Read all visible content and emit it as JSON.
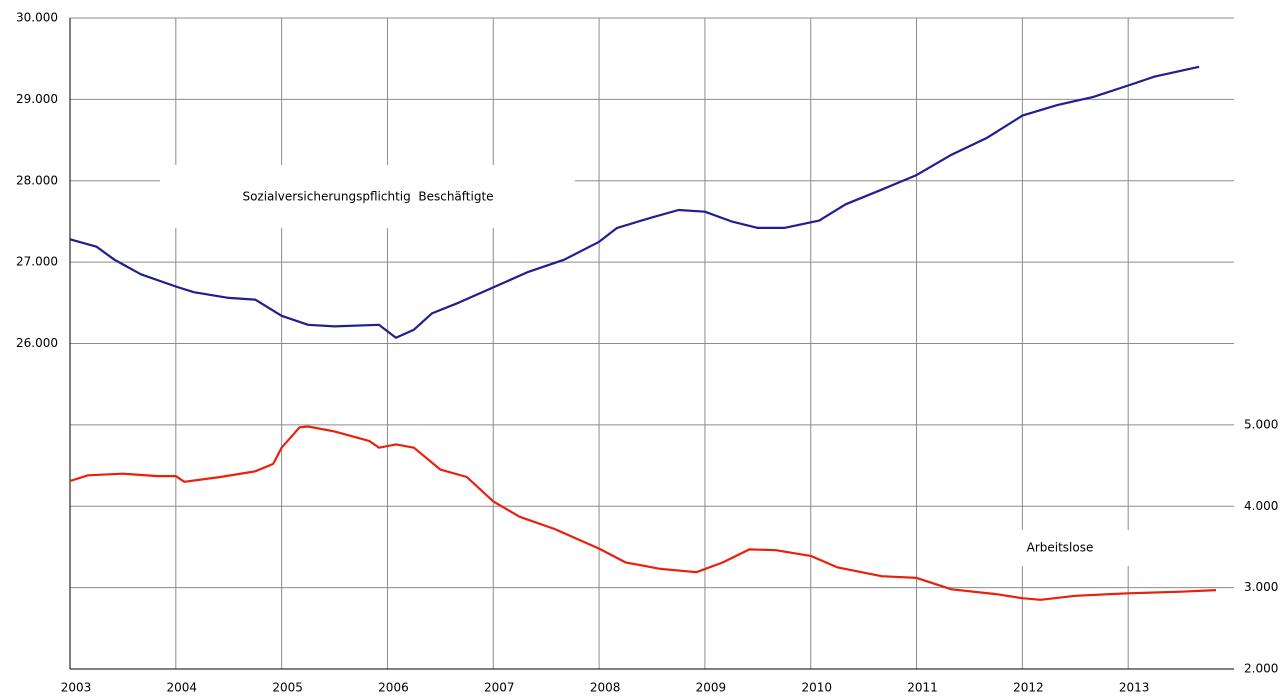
{
  "chart_data": {
    "type": "line",
    "xlim": [
      2003,
      2014
    ],
    "xticks": [
      2003,
      2004,
      2005,
      2006,
      2007,
      2008,
      2009,
      2010,
      2011,
      2012,
      2013
    ],
    "ylim": [
      22000,
      30000
    ],
    "yticks": [
      {
        "value": 26000,
        "label": "26.000"
      },
      {
        "value": 27000,
        "label": "27.000"
      },
      {
        "value": 28000,
        "label": "28.000"
      },
      {
        "value": 29000,
        "label": "29.000"
      },
      {
        "value": 30000,
        "label": "30.000"
      }
    ],
    "y2lim": [
      2000,
      10000
    ],
    "y2ticks": [
      {
        "value": 2000,
        "label": "2.000"
      },
      {
        "value": 3000,
        "label": "3.000"
      },
      {
        "value": 4000,
        "label": "4.000"
      },
      {
        "value": 5000,
        "label": "5.000"
      }
    ],
    "grid": true,
    "series": [
      {
        "name": "Sozialversicherungspflichtig  Beschäftigte",
        "color": "#1f1f8f",
        "axis": "y",
        "x": [
          2003.0,
          2003.25,
          2003.42,
          2003.67,
          2004.0,
          2004.17,
          2004.5,
          2004.75,
          2005.0,
          2005.25,
          2005.5,
          2005.92,
          2006.08,
          2006.25,
          2006.42,
          2006.67,
          2007.0,
          2007.33,
          2007.67,
          2008.0,
          2008.17,
          2008.5,
          2008.75,
          2009.0,
          2009.25,
          2009.5,
          2009.75,
          2010.08,
          2010.33,
          2010.67,
          2011.0,
          2011.33,
          2011.67,
          2012.0,
          2012.33,
          2012.67,
          2013.0,
          2013.25,
          2013.67
        ],
        "values": [
          27280,
          27190,
          27030,
          26850,
          26700,
          26630,
          26560,
          26540,
          26340,
          26230,
          26210,
          26230,
          26070,
          26170,
          26370,
          26500,
          26690,
          26880,
          27030,
          27250,
          27420,
          27550,
          27640,
          27620,
          27500,
          27420,
          27420,
          27510,
          27710,
          27890,
          28070,
          28320,
          28530,
          28800,
          28930,
          29030,
          29170,
          29280,
          29400
        ]
      },
      {
        "name": "Arbeitslose",
        "color": "#e8200c",
        "axis": "y2",
        "x": [
          2003.0,
          2003.17,
          2003.5,
          2003.83,
          2004.0,
          2004.08,
          2004.42,
          2004.75,
          2004.92,
          2005.0,
          2005.17,
          2005.25,
          2005.5,
          2005.83,
          2005.92,
          2006.08,
          2006.25,
          2006.5,
          2006.75,
          2007.0,
          2007.25,
          2007.58,
          2008.0,
          2008.25,
          2008.58,
          2008.92,
          2009.17,
          2009.42,
          2009.67,
          2010.0,
          2010.25,
          2010.67,
          2011.0,
          2011.33,
          2011.75,
          2012.0,
          2012.17,
          2012.5,
          2012.83,
          2013.0,
          2013.5,
          2013.83
        ],
        "values": [
          4310,
          4380,
          4400,
          4370,
          4370,
          4300,
          4360,
          4430,
          4520,
          4720,
          4970,
          4980,
          4920,
          4800,
          4720,
          4760,
          4720,
          4450,
          4360,
          4060,
          3870,
          3720,
          3480,
          3310,
          3230,
          3190,
          3310,
          3470,
          3460,
          3390,
          3250,
          3140,
          3120,
          2980,
          2920,
          2870,
          2850,
          2900,
          2920,
          2930,
          2950,
          2970
        ]
      }
    ]
  }
}
